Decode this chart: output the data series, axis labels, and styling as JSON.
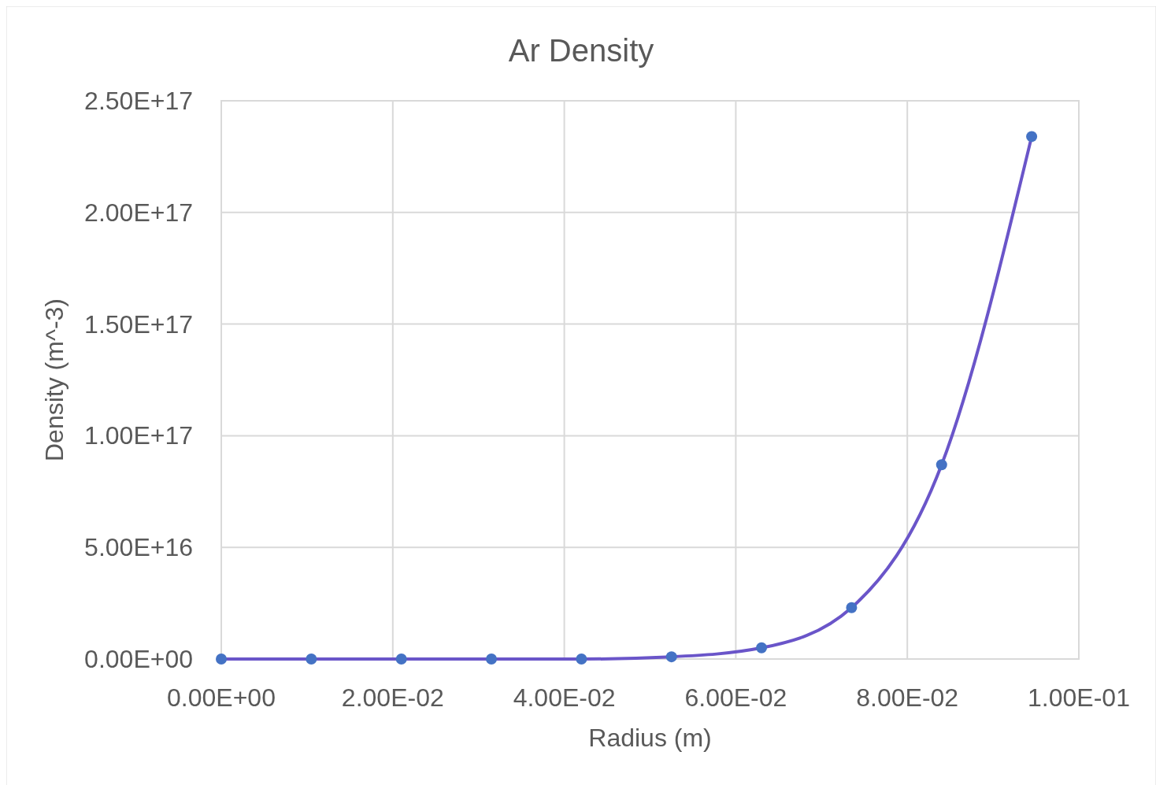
{
  "chart_data": {
    "type": "scatter",
    "title": "Ar Density",
    "xlabel": "Radius (m)",
    "ylabel": "Density (m^-3)",
    "x": [
      0,
      0.0105,
      0.021,
      0.0315,
      0.042,
      0.0525,
      0.063,
      0.0735,
      0.084,
      0.0945
    ],
    "series": [
      {
        "type": "line",
        "color": "#6a55c9",
        "values": [
          0,
          0,
          0,
          0,
          0,
          1000000000000000.0,
          5000000000000000.0,
          2.3e+16,
          8.7e+16,
          2.34e+17
        ],
        "marker": "none"
      },
      {
        "color": "#4472c4",
        "values": [
          0,
          0,
          0,
          0,
          0,
          1000000000000000.0,
          5000000000000000.0,
          2.3e+16,
          8.7e+16,
          2.34e+17
        ],
        "marker": "circle"
      }
    ],
    "xlim": [
      0,
      0.1
    ],
    "ylim": [
      0,
      2.5e+17
    ],
    "xticks": [
      {
        "value": 0,
        "label": "0.00E+00"
      },
      {
        "value": 0.02,
        "label": "2.00E-02"
      },
      {
        "value": 0.04,
        "label": "4.00E-02"
      },
      {
        "value": 0.06,
        "label": "6.00E-02"
      },
      {
        "value": 0.08,
        "label": "8.00E-02"
      },
      {
        "value": 0.1,
        "label": "1.00E-01"
      }
    ],
    "yticks": [
      {
        "value": 0,
        "label": "0.00E+00"
      },
      {
        "value": 5e+16,
        "label": "5.00E+16"
      },
      {
        "value": 1e+17,
        "label": "1.00E+17"
      },
      {
        "value": 1.5e+17,
        "label": "1.50E+17"
      },
      {
        "value": 2e+17,
        "label": "2.00E+17"
      },
      {
        "value": 2.5e+17,
        "label": "2.50E+17"
      }
    ],
    "grid": true
  }
}
